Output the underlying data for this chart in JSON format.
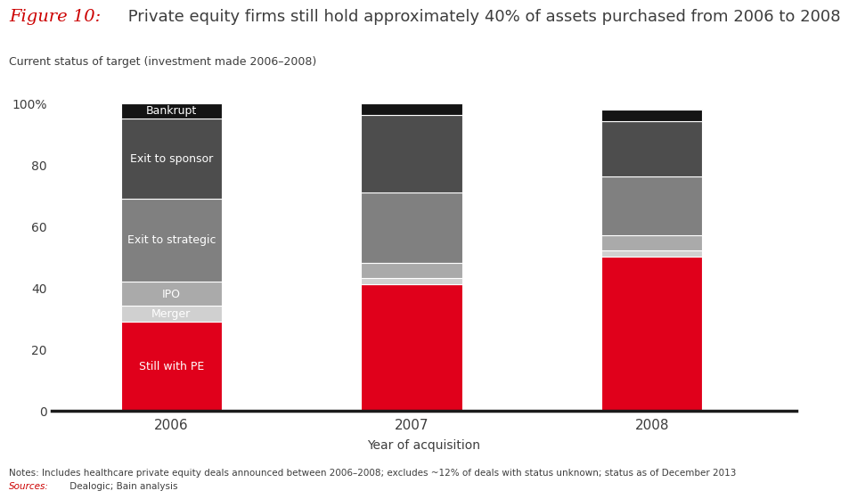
{
  "years": [
    "2006",
    "2007",
    "2008"
  ],
  "categories": [
    "Still with PE",
    "Merger",
    "IPO",
    "Exit to strategic",
    "Exit to sponsor",
    "Bankrupt"
  ],
  "values": {
    "Still with PE": [
      29,
      41,
      50
    ],
    "Merger": [
      5,
      2,
      2
    ],
    "IPO": [
      8,
      5,
      5
    ],
    "Exit to strategic": [
      27,
      23,
      19
    ],
    "Exit to sponsor": [
      26,
      25,
      18
    ],
    "Bankrupt": [
      5,
      4,
      4
    ]
  },
  "colors": {
    "Still with PE": "#e0001b",
    "Merger": "#d0d0d0",
    "IPO": "#aaaaaa",
    "Exit to strategic": "#808080",
    "Exit to sponsor": "#4d4d4d",
    "Bankrupt": "#141414"
  },
  "bar_width": 0.42,
  "bar_positions": [
    1,
    2,
    3
  ],
  "title_figure": "Figure 10:",
  "title_text": " Private equity firms still hold approximately 40% of assets purchased from 2006 to 2008",
  "subtitle": "Current status of target (investment made 2006–2008)",
  "xlabel": "Year of acquisition",
  "yticks": [
    0,
    20,
    40,
    60,
    80,
    100
  ],
  "yticklabels": [
    "0",
    "20",
    "40",
    "60",
    "80",
    "100%"
  ],
  "note_line1": "Notes: Includes healthcare private equity deals announced between 2006–2008; excludes ~12% of deals with status unknown; status as of December 2013",
  "note_sources_label": "Sources:",
  "note_sources_text": " Dealogic; Bain analysis",
  "background_color": "#ffffff",
  "label_color_white": "#ffffff",
  "title_figure_color": "#cc0000",
  "title_text_color": "#3d3d3d",
  "subtitle_color": "#3d3d3d",
  "note_color": "#3d3d3d",
  "sources_color": "#cc0000",
  "labels_only_col0": true
}
